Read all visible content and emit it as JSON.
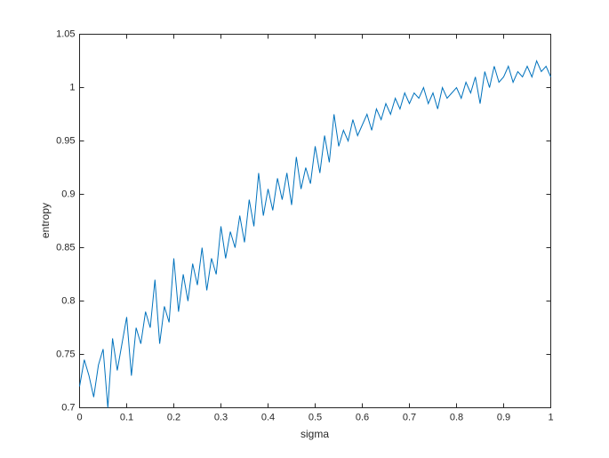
{
  "chart_data": {
    "type": "line",
    "xlabel": "sigma",
    "ylabel": "entropy",
    "x": [
      0,
      0.01,
      0.02,
      0.03,
      0.04,
      0.05,
      0.06,
      0.07,
      0.08,
      0.09,
      0.1,
      0.11,
      0.12,
      0.13,
      0.14,
      0.15,
      0.16,
      0.17,
      0.18,
      0.19,
      0.2,
      0.21,
      0.22,
      0.23,
      0.24,
      0.25,
      0.26,
      0.27,
      0.28,
      0.29,
      0.3,
      0.31,
      0.32,
      0.33,
      0.34,
      0.35,
      0.36,
      0.37,
      0.38,
      0.39,
      0.4,
      0.41,
      0.42,
      0.43,
      0.44,
      0.45,
      0.46,
      0.47,
      0.48,
      0.49,
      0.5,
      0.51,
      0.52,
      0.53,
      0.54,
      0.55,
      0.56,
      0.57,
      0.58,
      0.59,
      0.6,
      0.61,
      0.62,
      0.63,
      0.64,
      0.65,
      0.66,
      0.67,
      0.68,
      0.69,
      0.7,
      0.71,
      0.72,
      0.73,
      0.74,
      0.75,
      0.76,
      0.77,
      0.78,
      0.79,
      0.8,
      0.81,
      0.82,
      0.83,
      0.84,
      0.85,
      0.86,
      0.87,
      0.88,
      0.89,
      0.9,
      0.91,
      0.92,
      0.93,
      0.94,
      0.95,
      0.96,
      0.97,
      0.98,
      0.99,
      1
    ],
    "series": [
      {
        "color": "#0072bd",
        "values": [
          0.72,
          0.745,
          0.73,
          0.71,
          0.74,
          0.755,
          0.7,
          0.765,
          0.735,
          0.76,
          0.785,
          0.73,
          0.775,
          0.76,
          0.79,
          0.775,
          0.82,
          0.76,
          0.795,
          0.78,
          0.84,
          0.79,
          0.825,
          0.8,
          0.835,
          0.815,
          0.85,
          0.81,
          0.84,
          0.825,
          0.87,
          0.84,
          0.865,
          0.85,
          0.88,
          0.855,
          0.895,
          0.87,
          0.92,
          0.88,
          0.905,
          0.885,
          0.915,
          0.895,
          0.92,
          0.89,
          0.935,
          0.905,
          0.925,
          0.91,
          0.945,
          0.92,
          0.955,
          0.93,
          0.975,
          0.945,
          0.96,
          0.95,
          0.97,
          0.955,
          0.965,
          0.975,
          0.96,
          0.98,
          0.97,
          0.985,
          0.975,
          0.99,
          0.98,
          0.995,
          0.985,
          0.995,
          0.99,
          1.0,
          0.985,
          0.995,
          0.98,
          1.0,
          0.99,
          0.995,
          1.0,
          0.99,
          1.005,
          0.995,
          1.01,
          0.985,
          1.015,
          1.0,
          1.02,
          1.005,
          1.01,
          1.02,
          1.005,
          1.015,
          1.01,
          1.02,
          1.01,
          1.025,
          1.015,
          1.02,
          1.01
        ]
      }
    ],
    "xlim": [
      0,
      1
    ],
    "xticks": [
      0,
      0.1,
      0.2,
      0.3,
      0.4,
      0.5,
      0.6,
      0.7,
      0.8,
      0.9,
      1
    ],
    "ylim": [
      0.7,
      1.05
    ],
    "yticks": [
      0.7,
      0.75,
      0.8,
      0.85,
      0.9,
      0.95,
      1,
      1.05
    ],
    "grid": false
  }
}
